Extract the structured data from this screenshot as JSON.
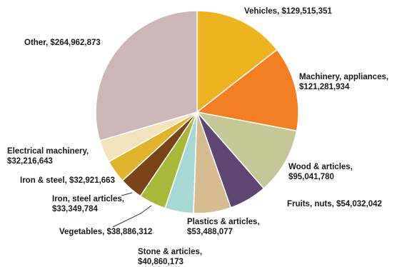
{
  "chart_data": {
    "type": "pie",
    "title": "",
    "legend": "none",
    "slices": [
      {
        "name": "Vehicles",
        "value": 129515351,
        "label": "Vehicles,  $129,515,351",
        "color": "#eeb41f"
      },
      {
        "name": "Machinery, appliances",
        "value": 121281934,
        "label": [
          "Machinery, appliances,",
          "$121,281,934"
        ],
        "color": "#f47f22"
      },
      {
        "name": "Wood & articles",
        "value": 95041780,
        "label": [
          "Wood & articles,",
          "$95,041,780"
        ],
        "color": "#c5c896"
      },
      {
        "name": "Fruits, nuts",
        "value": 54032042,
        "label": "Fruits, nuts,  $54,032,042",
        "color": "#5f4672"
      },
      {
        "name": "Plastics & articles",
        "value": 53488077,
        "label": [
          "Plastics & articles,",
          "$53,488,077"
        ],
        "color": "#d5bb8e"
      },
      {
        "name": "Stone & articles",
        "value": 40860173,
        "label": [
          "Stone & articles,",
          "$40,860,173"
        ],
        "color": "#a6d9d6"
      },
      {
        "name": "Vegetables",
        "value": 38886312,
        "label": "Vegetables,  $38,886,312",
        "color": "#a8b93a"
      },
      {
        "name": "Iron, steel articles",
        "value": 33349784,
        "label": [
          "Iron, steel articles,",
          "$33,349,784"
        ],
        "color": "#7a4319"
      },
      {
        "name": "Iron & steel",
        "value": 32921663,
        "label": "Iron & steel,  $32,921,663",
        "color": "#e2b42c"
      },
      {
        "name": "Electrical machinery",
        "value": 32216643,
        "label": [
          "Electrical machinery,",
          "$32,216,643"
        ],
        "color": "#f3e4bd"
      },
      {
        "name": "Other",
        "value": 264962873,
        "label": "Other,  $264,962,873",
        "color": "#cdb6b7"
      }
    ]
  }
}
